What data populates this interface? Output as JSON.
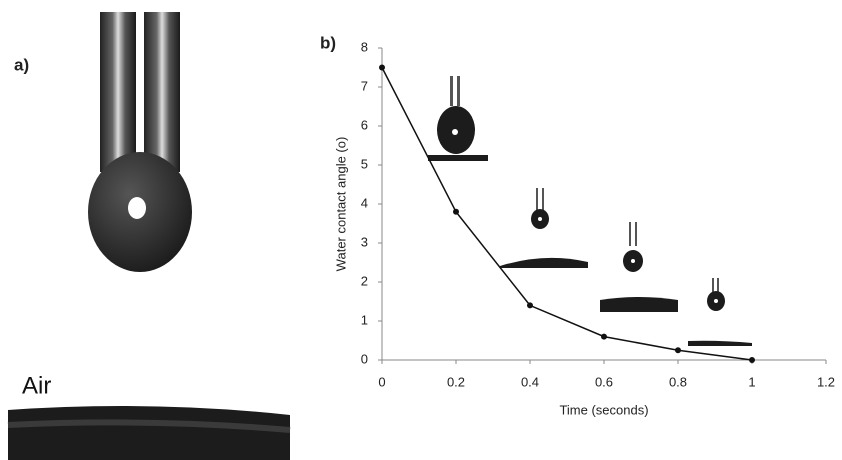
{
  "photo_panel": {
    "label": "a)",
    "annotation": "Air"
  },
  "chart_data": {
    "type": "line",
    "panel_label": "b)",
    "x_label": "Time (seconds)",
    "y_label": "Water contact angle (o)",
    "x": [
      0,
      0.2,
      0.4,
      0.6,
      0.8,
      1
    ],
    "values": [
      7.5,
      3.8,
      1.4,
      0.6,
      0.25,
      0
    ],
    "color": "#111111",
    "xlim": [
      0,
      1.2
    ],
    "xticks": [
      0,
      0.2,
      0.4,
      0.6,
      0.8,
      1,
      1.2
    ],
    "ylim": [
      0,
      8
    ],
    "yticks": [
      0,
      1,
      2,
      3,
      4,
      5,
      6,
      7,
      8
    ],
    "grid": false
  }
}
